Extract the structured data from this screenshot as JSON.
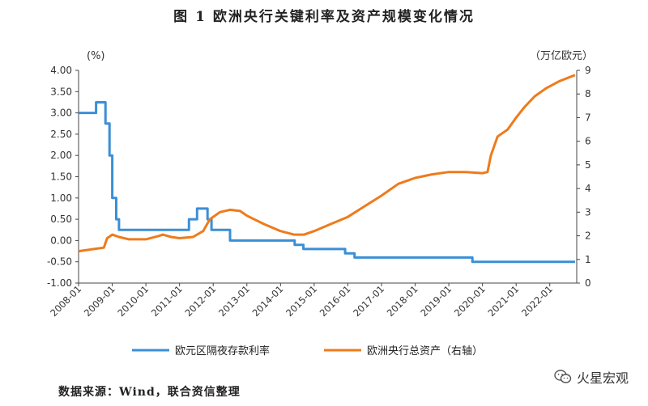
{
  "page": {
    "title": "图 1   欧洲央行关键利率及资产规模变化情况",
    "source": "数据来源：Wind，联合资信整理",
    "watermark": "火星宏观"
  },
  "chart_data": {
    "type": "line",
    "title": "图 1   欧洲央行关键利率及资产规模变化情况",
    "left_unit": "(%)",
    "right_unit": "（万亿欧元）",
    "ylim_left": [
      -1.0,
      4.0
    ],
    "yticks_left": [
      "-1.00",
      "-0.50",
      "0.00",
      "0.50",
      "1.00",
      "1.50",
      "2.00",
      "2.50",
      "3.00",
      "3.50",
      "4.00"
    ],
    "ylim_right": [
      0,
      9
    ],
    "yticks_right": [
      "0",
      "1",
      "2",
      "3",
      "4",
      "5",
      "6",
      "7",
      "8",
      "9"
    ],
    "xlim": [
      2008.0,
      2022.8
    ],
    "xticks": [
      "2008-01",
      "2009-01",
      "2010-01",
      "2011-01",
      "2012-01",
      "2013-01",
      "2014-01",
      "2015-01",
      "2016-01",
      "2017-01",
      "2018-01",
      "2019-01",
      "2020-01",
      "2021-01",
      "2022-01"
    ],
    "grid": false,
    "legend_position": "bottom",
    "series": [
      {
        "name": "欧元区隔夜存款利率",
        "axis": "left",
        "color": "#3b8fd6",
        "step": true,
        "points": [
          [
            2008.0,
            3.0
          ],
          [
            2008.52,
            3.25
          ],
          [
            2008.77,
            3.25
          ],
          [
            2008.8,
            2.75
          ],
          [
            2008.92,
            2.0
          ],
          [
            2009.0,
            1.0
          ],
          [
            2009.12,
            0.5
          ],
          [
            2009.2,
            0.25
          ],
          [
            2011.28,
            0.5
          ],
          [
            2011.52,
            0.75
          ],
          [
            2011.83,
            0.5
          ],
          [
            2011.95,
            0.25
          ],
          [
            2012.5,
            0.0
          ],
          [
            2014.42,
            -0.1
          ],
          [
            2014.68,
            -0.2
          ],
          [
            2015.92,
            -0.3
          ],
          [
            2016.2,
            -0.4
          ],
          [
            2019.7,
            -0.5
          ],
          [
            2022.75,
            -0.5
          ]
        ]
      },
      {
        "name": "欧洲央行总资产（右轴）",
        "axis": "right",
        "color": "#ee7b1c",
        "step": false,
        "points": [
          [
            2008.0,
            1.35
          ],
          [
            2008.5,
            1.45
          ],
          [
            2008.75,
            1.5
          ],
          [
            2008.85,
            1.9
          ],
          [
            2009.0,
            2.05
          ],
          [
            2009.2,
            1.95
          ],
          [
            2009.5,
            1.85
          ],
          [
            2010.0,
            1.85
          ],
          [
            2010.4,
            2.0
          ],
          [
            2010.5,
            2.05
          ],
          [
            2010.75,
            1.95
          ],
          [
            2011.0,
            1.9
          ],
          [
            2011.4,
            1.95
          ],
          [
            2011.7,
            2.2
          ],
          [
            2011.9,
            2.7
          ],
          [
            2012.2,
            3.0
          ],
          [
            2012.5,
            3.1
          ],
          [
            2012.8,
            3.05
          ],
          [
            2013.0,
            2.85
          ],
          [
            2013.5,
            2.5
          ],
          [
            2014.0,
            2.2
          ],
          [
            2014.4,
            2.05
          ],
          [
            2014.7,
            2.05
          ],
          [
            2015.0,
            2.2
          ],
          [
            2015.5,
            2.5
          ],
          [
            2016.0,
            2.8
          ],
          [
            2016.5,
            3.25
          ],
          [
            2017.0,
            3.7
          ],
          [
            2017.5,
            4.2
          ],
          [
            2018.0,
            4.45
          ],
          [
            2018.5,
            4.6
          ],
          [
            2019.0,
            4.7
          ],
          [
            2019.5,
            4.7
          ],
          [
            2020.0,
            4.65
          ],
          [
            2020.15,
            4.7
          ],
          [
            2020.25,
            5.4
          ],
          [
            2020.45,
            6.2
          ],
          [
            2020.75,
            6.5
          ],
          [
            2021.0,
            7.0
          ],
          [
            2021.25,
            7.45
          ],
          [
            2021.55,
            7.9
          ],
          [
            2021.9,
            8.25
          ],
          [
            2022.3,
            8.55
          ],
          [
            2022.75,
            8.8
          ]
        ]
      }
    ]
  }
}
